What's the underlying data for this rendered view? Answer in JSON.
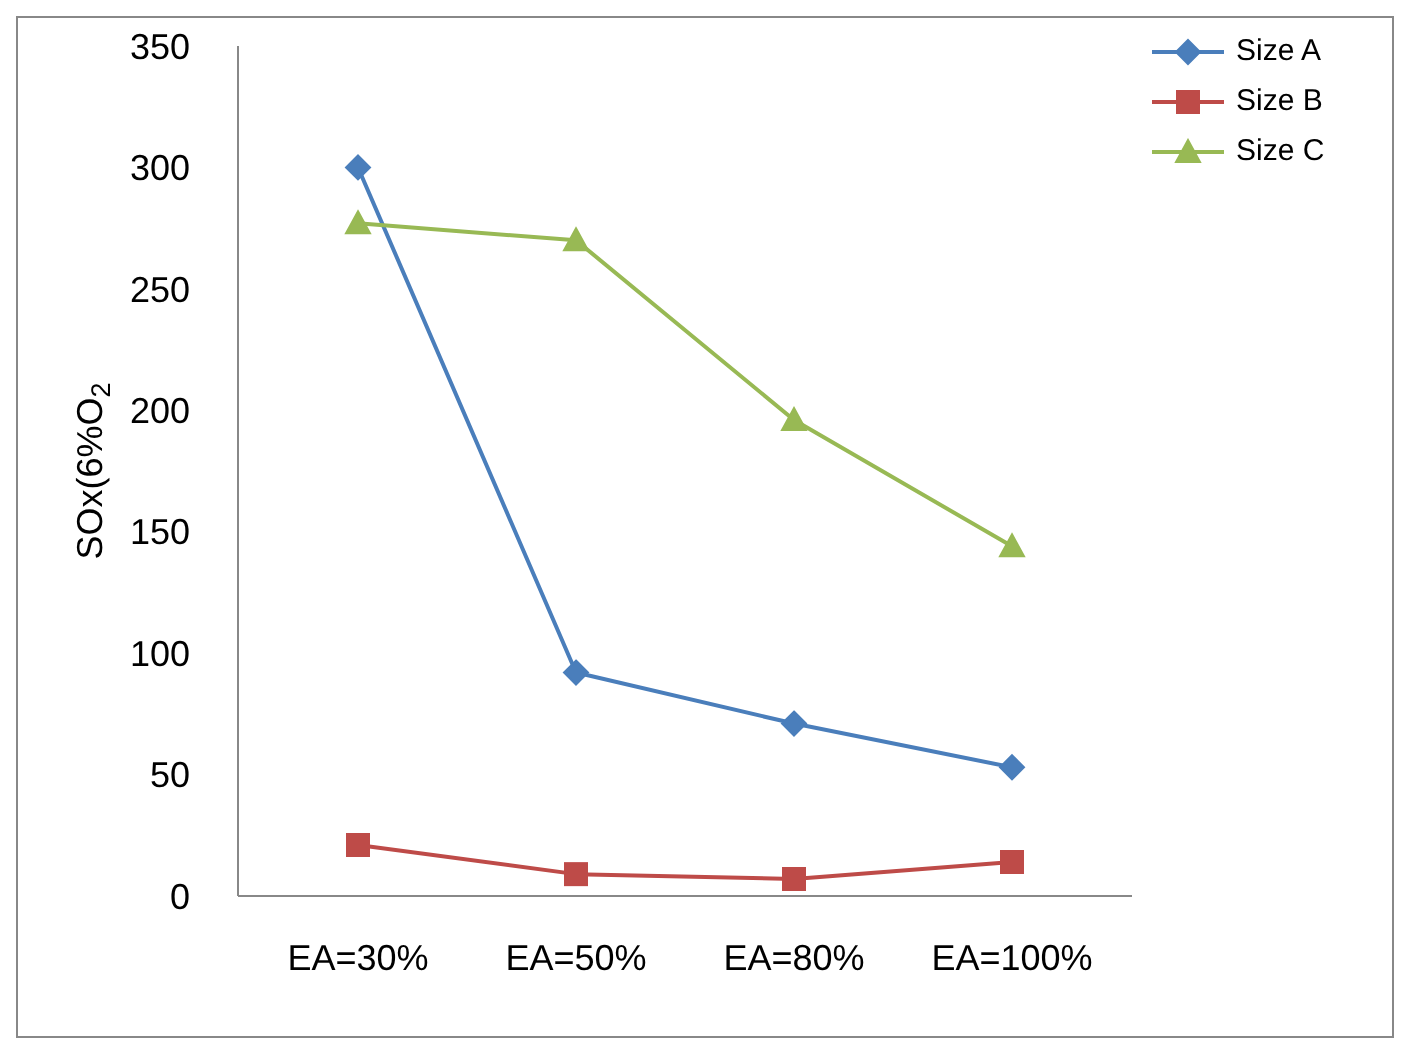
{
  "chart_data": {
    "type": "line",
    "ylabel": "SOx(6%O$_{2}$",
    "categories": [
      "EA=30%",
      "EA=50%",
      "EA=80%",
      "EA=100%"
    ],
    "series": [
      {
        "name": "Size A",
        "color": "#4a7ebb",
        "marker": "diamond",
        "values": [
          300,
          92,
          71,
          53
        ]
      },
      {
        "name": "Size B",
        "color": "#be4b48",
        "marker": "square",
        "values": [
          21,
          9,
          7,
          14
        ]
      },
      {
        "name": "Size C",
        "color": "#98b954",
        "marker": "triangle",
        "values": [
          277,
          270,
          196,
          144
        ]
      }
    ],
    "ylim": [
      0,
      350
    ],
    "yticks": [
      0,
      50,
      100,
      150,
      200,
      250,
      300,
      350
    ],
    "grid": false,
    "legend": "top right"
  }
}
